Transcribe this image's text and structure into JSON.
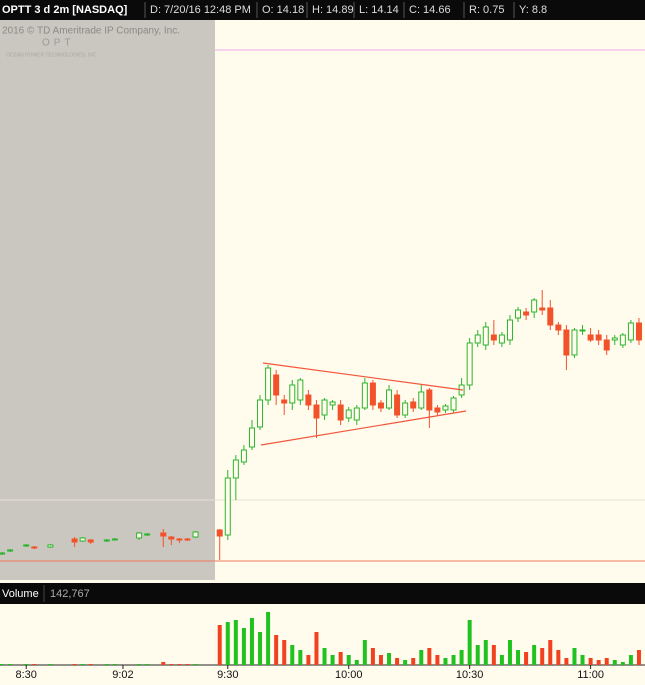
{
  "header": {
    "symbol": "OPTT 3 d 2m [NASDAQ]",
    "fields": [
      "D: 7/20/16 12:48 PM",
      "O: 14.18",
      "H: 14.89",
      "L: 14.14",
      "C: 14.66",
      "R: 0.75",
      "Y: 8.8"
    ]
  },
  "watermark": {
    "copyright": "2016 © TD Ameritrade IP Company, Inc.",
    "ticker": "OPT",
    "company": "OCEAN POWER TECHNOLOGIES, INC."
  },
  "chart_data": {
    "type": "candlestick",
    "categories": [
      null,
      null,
      null,
      "8:30",
      null,
      null,
      null,
      null,
      null,
      null,
      null,
      null,
      null,
      null,
      null,
      "9:02",
      null,
      null,
      null,
      null,
      null,
      null,
      null,
      null,
      null,
      null,
      null,
      null,
      "9:30",
      null,
      null,
      null,
      null,
      null,
      null,
      null,
      null,
      null,
      null,
      null,
      null,
      null,
      null,
      "10:00",
      null,
      null,
      null,
      null,
      null,
      null,
      null,
      null,
      null,
      null,
      null,
      null,
      null,
      null,
      "10:30",
      null,
      null,
      null,
      null,
      null,
      null,
      null,
      null,
      null,
      null,
      null,
      null,
      null,
      null,
      "11:00",
      null,
      null,
      null,
      null,
      null,
      null
    ],
    "open": [
      10.26,
      10.29,
      null,
      10.34,
      10.33,
      null,
      10.33,
      null,
      null,
      10.41,
      10.39,
      10.4,
      null,
      10.4,
      10.41,
      null,
      null,
      10.42,
      10.45,
      null,
      10.47,
      10.43,
      10.41,
      10.41,
      10.43,
      null,
      null,
      10.5,
      10.45,
      11.02,
      11.18,
      11.33,
      11.53,
      11.8,
      12.05,
      11.8,
      11.77,
      11.8,
      11.85,
      11.75,
      11.65,
      11.75,
      11.75,
      11.62,
      11.6,
      11.72,
      11.97,
      11.77,
      11.72,
      11.85,
      11.65,
      11.78,
      11.72,
      11.9,
      11.72,
      11.7,
      11.7,
      11.85,
      11.95,
      12.37,
      12.35,
      12.45,
      12.37,
      12.4,
      12.62,
      12.68,
      12.68,
      12.72,
      12.72,
      12.55,
      12.5,
      12.25,
      12.5,
      12.45,
      12.45,
      12.4,
      12.4,
      12.35,
      12.4,
      12.57
    ],
    "high": [
      10.28,
      10.31,
      null,
      10.36,
      10.34,
      null,
      10.36,
      null,
      null,
      10.43,
      10.43,
      10.41,
      null,
      10.41,
      10.42,
      null,
      null,
      10.48,
      10.47,
      null,
      10.51,
      10.44,
      10.42,
      10.42,
      10.49,
      null,
      null,
      10.51,
      11.1,
      11.25,
      11.35,
      11.6,
      11.85,
      12.15,
      12.1,
      11.85,
      12.0,
      12.02,
      11.9,
      11.8,
      11.82,
      11.8,
      11.8,
      11.73,
      11.75,
      12.02,
      12.0,
      11.8,
      11.95,
      11.9,
      11.8,
      11.82,
      11.95,
      11.92,
      11.75,
      11.76,
      11.84,
      12.02,
      12.42,
      12.5,
      12.58,
      12.6,
      12.48,
      12.65,
      12.73,
      12.72,
      12.82,
      12.9,
      12.8,
      12.58,
      12.55,
      12.52,
      12.55,
      12.52,
      12.5,
      12.45,
      12.45,
      12.47,
      12.6,
      12.62
    ],
    "low": [
      10.25,
      10.28,
      null,
      10.33,
      10.31,
      null,
      10.32,
      null,
      null,
      10.33,
      10.38,
      10.36,
      null,
      10.38,
      10.4,
      null,
      null,
      10.4,
      10.44,
      null,
      10.33,
      10.35,
      10.37,
      10.39,
      10.42,
      null,
      null,
      10.2,
      10.4,
      10.8,
      11.15,
      11.3,
      11.5,
      11.75,
      11.75,
      11.65,
      11.7,
      11.75,
      11.7,
      11.42,
      11.6,
      11.7,
      11.55,
      11.58,
      11.55,
      11.7,
      11.7,
      11.68,
      11.7,
      11.62,
      11.62,
      11.68,
      11.7,
      11.52,
      11.65,
      11.67,
      11.67,
      11.82,
      11.9,
      12.33,
      12.3,
      12.35,
      12.33,
      12.35,
      12.58,
      12.6,
      12.62,
      12.65,
      12.5,
      12.45,
      12.1,
      12.22,
      12.45,
      12.38,
      12.35,
      12.25,
      12.35,
      12.32,
      12.37,
      12.35
    ],
    "close": [
      10.27,
      10.3,
      null,
      10.35,
      10.32,
      null,
      10.35,
      null,
      null,
      10.38,
      10.42,
      10.38,
      null,
      10.4,
      10.41,
      null,
      null,
      10.47,
      10.46,
      null,
      10.44,
      10.41,
      10.4,
      10.4,
      10.48,
      null,
      null,
      10.44,
      11.02,
      11.2,
      11.3,
      11.52,
      11.8,
      12.12,
      11.85,
      11.77,
      11.95,
      12.0,
      11.75,
      11.62,
      11.8,
      11.78,
      11.6,
      11.7,
      11.72,
      11.97,
      11.75,
      11.72,
      11.9,
      11.65,
      11.77,
      11.72,
      11.88,
      11.7,
      11.68,
      11.74,
      11.82,
      11.95,
      12.37,
      12.45,
      12.53,
      12.4,
      12.45,
      12.6,
      12.7,
      12.65,
      12.8,
      12.7,
      12.55,
      12.5,
      12.25,
      12.5,
      12.5,
      12.4,
      12.4,
      12.3,
      12.42,
      12.45,
      12.57,
      12.4
    ],
    "volume": [
      2000,
      2000,
      null,
      2000,
      2000,
      null,
      2000,
      null,
      null,
      2000,
      2000,
      2000,
      null,
      2000,
      2000,
      null,
      null,
      2000,
      2000,
      null,
      6000,
      2000,
      2000,
      2000,
      2000,
      null,
      null,
      80000,
      86000,
      90000,
      74000,
      94000,
      66000,
      106000,
      60000,
      50000,
      40000,
      30000,
      20000,
      66000,
      34000,
      20000,
      26000,
      20000,
      10000,
      50000,
      34000,
      20000,
      24000,
      14000,
      10000,
      14000,
      30000,
      34000,
      20000,
      14000,
      20000,
      30000,
      90000,
      40000,
      50000,
      40000,
      20000,
      50000,
      30000,
      26000,
      40000,
      34000,
      50000,
      30000,
      14000,
      34000,
      20000,
      14000,
      10000,
      14000,
      10000,
      6000,
      20000,
      30000
    ],
    "ylim": [
      10,
      15.6
    ],
    "volume_ylim": [
      0,
      120000
    ],
    "up_color": "#2cb52c",
    "down_color": "#f2522a",
    "vol_up_color": "#1fc21f",
    "vol_down_color": "#f2411e",
    "hlines": [
      {
        "value": 15.3,
        "color": "#f2a8f0"
      },
      {
        "value": 10.8,
        "color": "#e6e2d4"
      },
      {
        "value": 10.19,
        "color": "#f27a5c"
      }
    ],
    "volume_label": "Volume",
    "volume_value": "142,767"
  }
}
